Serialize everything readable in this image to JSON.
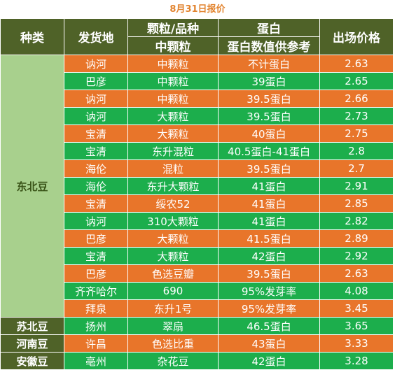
{
  "title": "8月31日报价",
  "headers": {
    "category": "种类",
    "origin": "发货地",
    "grain_top": "颗粒/品种",
    "grain_bottom": "中颗粒",
    "protein_top": "蛋白",
    "protein_bottom": "蛋白数值供参考",
    "price": "出场价格"
  },
  "categories": [
    "东北豆",
    "苏北豆",
    "河南豆",
    "安徽豆"
  ],
  "rows": [
    {
      "origin": "讷河",
      "grain": "中颗粒",
      "protein": "不计蛋白",
      "price": "2.63"
    },
    {
      "origin": "巴彦",
      "grain": "中颗粒",
      "protein": "39蛋白",
      "price": "2.65"
    },
    {
      "origin": "讷河",
      "grain": "中颗粒",
      "protein": "39.5蛋白",
      "price": "2.66"
    },
    {
      "origin": "讷河",
      "grain": "大颗粒",
      "protein": "39.5蛋白",
      "price": "2.73"
    },
    {
      "origin": "宝清",
      "grain": "大颗粒",
      "protein": "40蛋白",
      "price": "2.75"
    },
    {
      "origin": "宝清",
      "grain": "东升混粒",
      "protein": "40.5蛋白-41蛋白",
      "price": "2.8"
    },
    {
      "origin": "海伦",
      "grain": "混粒",
      "protein": "39.5蛋白",
      "price": "2.7"
    },
    {
      "origin": "海伦",
      "grain": "东升大颗粒",
      "protein": "41蛋白",
      "price": "2.91"
    },
    {
      "origin": "宝清",
      "grain": "绥农52",
      "protein": "41蛋白",
      "price": "2.85"
    },
    {
      "origin": "讷河",
      "grain": "310大颗粒",
      "protein": "41蛋白",
      "price": "2.82"
    },
    {
      "origin": "巴彦",
      "grain": "大颗粒",
      "protein": "41.5蛋白",
      "price": "2.89"
    },
    {
      "origin": "宝清",
      "grain": "大颗粒",
      "protein": "42蛋白",
      "price": "2.92"
    },
    {
      "origin": "巴彦",
      "grain": "色选豆瓣",
      "protein": "39.5蛋白",
      "price": "2.63"
    },
    {
      "origin": "齐齐哈尔",
      "grain": "690",
      "protein": "95%发芽率",
      "price": "4.08"
    },
    {
      "origin": "拜泉",
      "grain": "东升1号",
      "protein": "95%发芽率",
      "price": "3.45"
    },
    {
      "origin": "扬州",
      "grain": "翠扇",
      "protein": "46.5蛋白",
      "price": "3.65"
    },
    {
      "origin": "许昌",
      "grain": "色选比重",
      "protein": "43蛋白",
      "price": "3.33"
    },
    {
      "origin": "亳州",
      "grain": "杂花豆",
      "protein": "42蛋白",
      "price": "3.28"
    }
  ],
  "colors": {
    "header_bg": "#4f6228",
    "row_orange": "#e8752a",
    "row_green": "#1cae4c",
    "category_light": "#a8d08d",
    "title": "#e2842f"
  }
}
